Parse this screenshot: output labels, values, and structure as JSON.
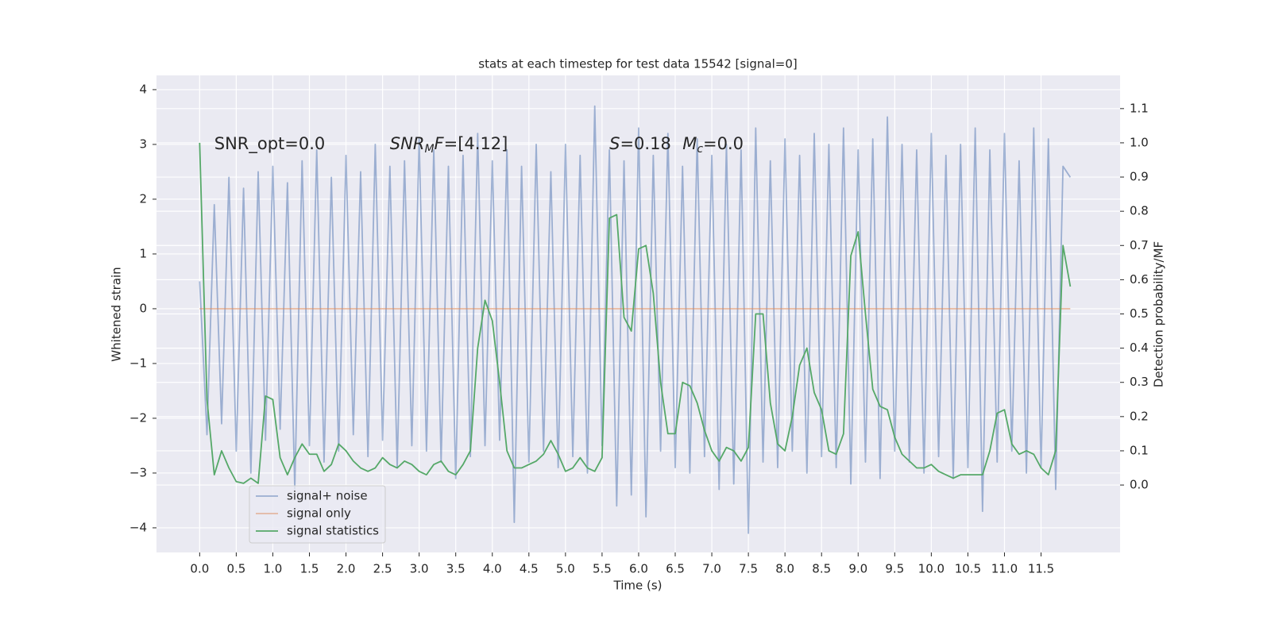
{
  "chart_data": {
    "type": "line",
    "title": "stats at each timestep for test data 15542 [signal=0]",
    "xlabel": "Time (s)",
    "ylabel": "Whitened strain",
    "y2label": "Detection probability/MF",
    "x": [
      0.0,
      0.1,
      0.2,
      0.3,
      0.4,
      0.5,
      0.6,
      0.7,
      0.8,
      0.9,
      1.0,
      1.1,
      1.2,
      1.3,
      1.4,
      1.5,
      1.6,
      1.7,
      1.8,
      1.9,
      2.0,
      2.1,
      2.2,
      2.3,
      2.4,
      2.5,
      2.6,
      2.7,
      2.8,
      2.9,
      3.0,
      3.1,
      3.2,
      3.3,
      3.4,
      3.5,
      3.6,
      3.7,
      3.8,
      3.9,
      4.0,
      4.1,
      4.2,
      4.3,
      4.4,
      4.5,
      4.6,
      4.7,
      4.8,
      4.9,
      5.0,
      5.1,
      5.2,
      5.3,
      5.4,
      5.5,
      5.6,
      5.7,
      5.8,
      5.9,
      6.0,
      6.1,
      6.2,
      6.3,
      6.4,
      6.5,
      6.6,
      6.7,
      6.8,
      6.9,
      7.0,
      7.1,
      7.2,
      7.3,
      7.4,
      7.5,
      7.6,
      7.7,
      7.8,
      7.9,
      8.0,
      8.1,
      8.2,
      8.3,
      8.4,
      8.5,
      8.6,
      8.7,
      8.8,
      8.9,
      9.0,
      9.1,
      9.2,
      9.3,
      9.4,
      9.5,
      9.6,
      9.7,
      9.8,
      9.9,
      10.0,
      10.1,
      10.2,
      10.3,
      10.4,
      10.5,
      10.6,
      10.7,
      10.8,
      10.9,
      11.0,
      11.1,
      11.2,
      11.3,
      11.4,
      11.5,
      11.6,
      11.7,
      11.8,
      11.9
    ],
    "series": [
      {
        "name": "signal+ noise",
        "color": "#4c72b0",
        "opacity": 0.5,
        "values": [
          0.5,
          -2.3,
          1.9,
          -2.1,
          2.4,
          -2.6,
          2.2,
          -3.0,
          2.5,
          -2.4,
          2.6,
          -2.2,
          2.3,
          -3.3,
          2.7,
          -2.5,
          2.9,
          -2.8,
          2.4,
          -2.6,
          2.8,
          -2.3,
          2.5,
          -2.7,
          3.0,
          -2.4,
          2.6,
          -2.9,
          2.7,
          -2.5,
          3.1,
          -2.6,
          2.9,
          -2.8,
          2.6,
          -3.1,
          2.8,
          -2.7,
          3.2,
          -2.5,
          2.7,
          -2.4,
          2.9,
          -3.9,
          2.6,
          -2.8,
          3.0,
          -2.6,
          2.5,
          -2.9,
          3.0,
          -2.7,
          2.8,
          -3.0,
          3.7,
          -2.5,
          2.9,
          -3.6,
          2.7,
          -3.4,
          3.3,
          -3.8,
          2.8,
          -2.6,
          3.2,
          -2.9,
          2.6,
          -3.0,
          3.1,
          -2.7,
          2.8,
          -3.3,
          3.0,
          -3.2,
          2.9,
          -4.1,
          3.3,
          -2.8,
          2.7,
          -2.9,
          3.1,
          -2.6,
          2.8,
          -3.0,
          3.2,
          -2.7,
          3.0,
          -2.9,
          3.3,
          -3.2,
          2.9,
          -2.8,
          3.1,
          -3.1,
          3.5,
          -2.6,
          3.0,
          -2.8,
          2.9,
          -3.0,
          3.2,
          -2.7,
          2.8,
          -3.1,
          3.0,
          -2.9,
          3.3,
          -3.7,
          2.9,
          -2.8,
          3.2,
          -2.6,
          2.7,
          -3.0,
          3.3,
          -2.9,
          3.1,
          -3.3,
          2.6,
          2.4
        ]
      },
      {
        "name": "signal only",
        "color": "#dd8452",
        "opacity": 0.5,
        "values": [
          0,
          0,
          0,
          0,
          0,
          0,
          0,
          0,
          0,
          0,
          0,
          0,
          0,
          0,
          0,
          0,
          0,
          0,
          0,
          0,
          0,
          0,
          0,
          0,
          0,
          0,
          0,
          0,
          0,
          0,
          0,
          0,
          0,
          0,
          0,
          0,
          0,
          0,
          0,
          0,
          0,
          0,
          0,
          0,
          0,
          0,
          0,
          0,
          0,
          0,
          0,
          0,
          0,
          0,
          0,
          0,
          0,
          0,
          0,
          0,
          0,
          0,
          0,
          0,
          0,
          0,
          0,
          0,
          0,
          0,
          0,
          0,
          0,
          0,
          0,
          0,
          0,
          0,
          0,
          0,
          0,
          0,
          0,
          0,
          0,
          0,
          0,
          0,
          0,
          0,
          0,
          0,
          0,
          0,
          0,
          0,
          0,
          0,
          0,
          0,
          0,
          0,
          0,
          0,
          0,
          0,
          0,
          0,
          0,
          0,
          0,
          0,
          0,
          0,
          0,
          0,
          0,
          0,
          0,
          0
        ]
      },
      {
        "name": "signal statistics",
        "color": "#55a868",
        "opacity": 1,
        "axis": "y2",
        "values": [
          1.0,
          0.25,
          0.03,
          0.1,
          0.05,
          0.01,
          0.005,
          0.02,
          0.005,
          0.26,
          0.25,
          0.08,
          0.03,
          0.08,
          0.12,
          0.09,
          0.09,
          0.04,
          0.06,
          0.12,
          0.1,
          0.07,
          0.05,
          0.04,
          0.05,
          0.08,
          0.06,
          0.05,
          0.07,
          0.06,
          0.04,
          0.03,
          0.06,
          0.07,
          0.04,
          0.03,
          0.06,
          0.1,
          0.4,
          0.54,
          0.48,
          0.3,
          0.1,
          0.05,
          0.05,
          0.06,
          0.07,
          0.09,
          0.13,
          0.09,
          0.04,
          0.05,
          0.08,
          0.05,
          0.04,
          0.08,
          0.78,
          0.79,
          0.49,
          0.45,
          0.69,
          0.7,
          0.56,
          0.3,
          0.15,
          0.15,
          0.3,
          0.29,
          0.24,
          0.16,
          0.1,
          0.07,
          0.11,
          0.1,
          0.07,
          0.11,
          0.5,
          0.5,
          0.24,
          0.12,
          0.1,
          0.2,
          0.35,
          0.4,
          0.27,
          0.22,
          0.1,
          0.09,
          0.15,
          0.67,
          0.74,
          0.5,
          0.28,
          0.23,
          0.22,
          0.14,
          0.09,
          0.07,
          0.05,
          0.05,
          0.06,
          0.04,
          0.03,
          0.02,
          0.03,
          0.03,
          0.03,
          0.03,
          0.1,
          0.21,
          0.22,
          0.12,
          0.09,
          0.1,
          0.09,
          0.05,
          0.03,
          0.1,
          0.7,
          0.58
        ]
      }
    ],
    "xlim": [
      -0.59,
      12.58
    ],
    "xticks": [
      {
        "value": 0,
        "label": "0.0"
      },
      {
        "value": 0.5,
        "label": "0.5"
      },
      {
        "value": 1,
        "label": "1.0"
      },
      {
        "value": 1.5,
        "label": "1.5"
      },
      {
        "value": 2,
        "label": "2.0"
      },
      {
        "value": 2.5,
        "label": "2.5"
      },
      {
        "value": 3,
        "label": "3.0"
      },
      {
        "value": 3.5,
        "label": "3.5"
      },
      {
        "value": 4,
        "label": "4.0"
      },
      {
        "value": 4.5,
        "label": "4.5"
      },
      {
        "value": 5,
        "label": "5.0"
      },
      {
        "value": 5.5,
        "label": "5.5"
      },
      {
        "value": 6,
        "label": "6.0"
      },
      {
        "value": 6.5,
        "label": "6.5"
      },
      {
        "value": 7,
        "label": "7.0"
      },
      {
        "value": 7.5,
        "label": "7.5"
      },
      {
        "value": 8,
        "label": "8.0"
      },
      {
        "value": 8.5,
        "label": "8.5"
      },
      {
        "value": 9,
        "label": "9.0"
      },
      {
        "value": 9.5,
        "label": "9.5"
      },
      {
        "value": 10,
        "label": "10.0"
      },
      {
        "value": 10.5,
        "label": "10.5"
      },
      {
        "value": 11,
        "label": "11.0"
      },
      {
        "value": 11.5,
        "label": "11.5"
      }
    ],
    "ylim": [
      -4.45,
      4.26
    ],
    "yticks": [
      {
        "value": -4,
        "label": "−4"
      },
      {
        "value": -3,
        "label": "−3"
      },
      {
        "value": -2,
        "label": "−2"
      },
      {
        "value": -1,
        "label": "−1"
      },
      0,
      1,
      2,
      3,
      4
    ],
    "y2lim": [
      -0.197,
      1.197
    ],
    "y2ticks": [
      {
        "value": 0,
        "label": "0.0"
      },
      {
        "value": 0.1,
        "label": "0.1"
      },
      {
        "value": 0.2,
        "label": "0.2"
      },
      {
        "value": 0.3,
        "label": "0.3"
      },
      {
        "value": 0.4,
        "label": "0.4"
      },
      {
        "value": 0.5,
        "label": "0.5"
      },
      {
        "value": 0.6,
        "label": "0.6"
      },
      {
        "value": 0.7,
        "label": "0.7"
      },
      {
        "value": 0.8,
        "label": "0.8"
      },
      {
        "value": 0.9,
        "label": "0.9"
      },
      {
        "value": 1,
        "label": "1.0"
      },
      {
        "value": 1.1,
        "label": "1.1"
      }
    ],
    "grid": true,
    "background": "#eaeaf2",
    "legend_loc": "lower left",
    "annotations": [
      {
        "x": 0.2,
        "y": 3.0,
        "segments": [
          {
            "text": "SNR_opt=0.0"
          }
        ]
      },
      {
        "x": 2.6,
        "y": 3.0,
        "segments": [
          {
            "text": "SNR",
            "italic": true
          },
          {
            "text": "M",
            "italic": true,
            "sub": true
          },
          {
            "text": "F",
            "italic": true
          },
          {
            "text": "=[4.12]"
          }
        ]
      },
      {
        "x": 5.6,
        "y": 3.0,
        "segments": [
          {
            "text": "S",
            "italic": true
          },
          {
            "text": "=0.18"
          }
        ]
      },
      {
        "x": 6.6,
        "y": 3.0,
        "segments": [
          {
            "text": "M",
            "italic": true
          },
          {
            "text": "c",
            "italic": true,
            "sub": true
          },
          {
            "text": "=0.0"
          }
        ]
      }
    ]
  }
}
